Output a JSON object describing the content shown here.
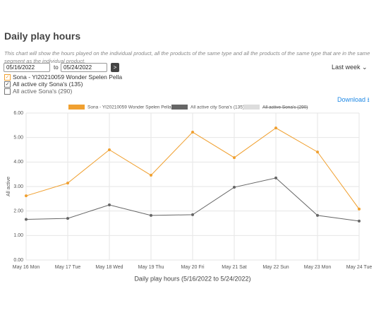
{
  "header": {
    "title": "Daily play hours",
    "description": "This chart will show the hours played on the individual product, all the products of the same type and all the products of the same type that are in the same segment as the individual product."
  },
  "filters": {
    "date_from": "05/16/2022",
    "to_label": "to",
    "date_to": "05/24/2022",
    "period": "Last week",
    "options": [
      {
        "label": "Sona - YI20210059 Wonder Spelen Pella",
        "checked": true
      },
      {
        "label": "All active city Sona's (135)",
        "checked": true
      },
      {
        "label": "All active Sona's (290)",
        "checked": false
      }
    ]
  },
  "download": "Download",
  "chart_data": {
    "type": "line",
    "xlabel": "Daily play hours (5/16/2022 to 5/24/2022)",
    "ylabel": "All active",
    "categories": [
      "May 16 Mon",
      "May 17 Tue",
      "May 18 Wed",
      "May 19 Thu",
      "May 20 Fri",
      "May 21 Sat",
      "May 22 Sun",
      "May 23 Mon",
      "May 24 Tue"
    ],
    "series": [
      {
        "name": "Sona - YI20210059 Wonder Spelen Pella",
        "color": "#f0a030",
        "values": [
          2.62,
          3.14,
          4.5,
          3.46,
          5.22,
          4.18,
          5.39,
          4.41,
          2.08
        ]
      },
      {
        "name": "All active city Sona's (135)",
        "color": "#666666",
        "values": [
          1.66,
          1.7,
          2.25,
          1.82,
          1.85,
          2.97,
          3.35,
          1.82,
          1.59
        ]
      },
      {
        "name": "All active Sona's (290)",
        "color": "#dddddd",
        "hidden": true
      }
    ],
    "ylim": [
      0,
      6
    ],
    "yticks": [
      {
        "value": 0,
        "label": "0.00"
      },
      {
        "value": 1,
        "label": "1.00"
      },
      {
        "value": 2,
        "label": "2.00"
      },
      {
        "value": 3,
        "label": "3.00"
      },
      {
        "value": 4,
        "label": "4.00"
      },
      {
        "value": 5,
        "label": "5.00"
      },
      {
        "value": 6,
        "label": "6.00"
      }
    ],
    "grid": true
  }
}
